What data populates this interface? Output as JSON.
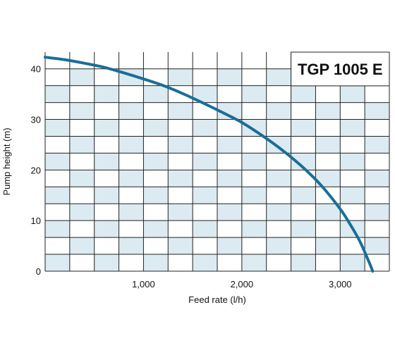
{
  "chart_data": {
    "type": "line",
    "title": "TGP 1005 E",
    "xlabel": "Feed rate (l/h)",
    "ylabel": "Pump height (m)",
    "xlim": [
      0,
      3500
    ],
    "ylim": [
      0,
      43.3
    ],
    "x_ticks": [
      1000,
      2000,
      3000
    ],
    "x_tick_labels": [
      "1,000",
      "2,000",
      "3,000"
    ],
    "y_ticks": [
      0,
      10,
      20,
      30,
      40
    ],
    "y_tick_labels": [
      "0",
      "10",
      "20",
      "30",
      "40"
    ],
    "x_grid_step": 250,
    "y_grid_step": 3.333,
    "grid": true,
    "series": [
      {
        "color": "#1a6e98",
        "x": [
          0,
          200,
          400,
          600,
          800,
          1000,
          1200,
          1400,
          1600,
          1800,
          2000,
          2200,
          2400,
          2600,
          2800,
          3000,
          3100,
          3200,
          3300,
          3330
        ],
        "y": [
          42.3,
          41.8,
          41.1,
          40.3,
          39.2,
          38.0,
          36.7,
          35.1,
          33.3,
          31.4,
          29.4,
          26.9,
          24.1,
          20.9,
          17.1,
          12.3,
          9.3,
          5.9,
          1.5,
          0
        ]
      }
    ],
    "colors": {
      "band_fill": "#dcebf1",
      "grid_line": "#222222",
      "curve": "#1a6e98"
    }
  }
}
